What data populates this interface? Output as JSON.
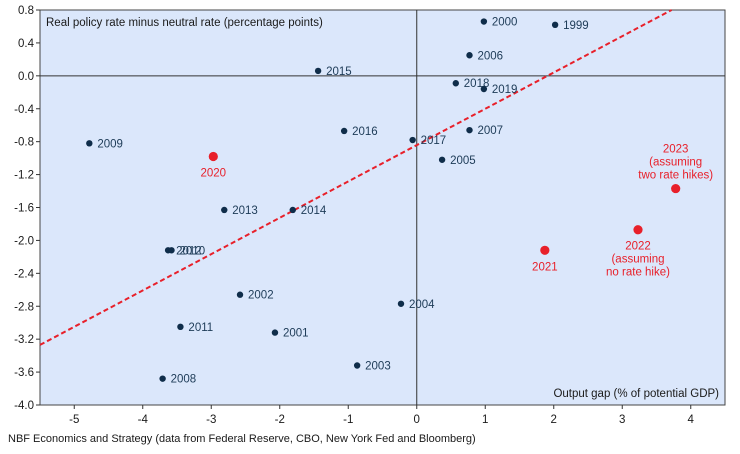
{
  "chart_data": {
    "type": "scatter",
    "annotation_y": "Real policy rate minus neutral rate (percentage points)",
    "annotation_x": "Output gap (% of potential GDP)",
    "xlim": [
      -5.5,
      4.5
    ],
    "ylim": [
      -4.0,
      0.8
    ],
    "x_ticks": [
      "-5",
      "-4",
      "-3",
      "-2",
      "-1",
      "0",
      "1",
      "2",
      "3",
      "4"
    ],
    "y_ticks": [
      "0.8",
      "0.4",
      "0.0",
      "-0.4",
      "-0.8",
      "-1.2",
      "-1.6",
      "-2.0",
      "-2.4",
      "-2.8",
      "-3.2",
      "-3.6",
      "-4.0"
    ],
    "grid": false,
    "colors": {
      "background": "#dbe7fb",
      "historical": "#0f2d4a",
      "highlight": "#e8202a",
      "trend": "#e8202a"
    },
    "points": [
      {
        "label": [
          "2000"
        ],
        "x": 0.98,
        "y": 0.66,
        "color": "historical",
        "label_pos": "right"
      },
      {
        "label": [
          "1999"
        ],
        "x": 2.02,
        "y": 0.62,
        "color": "historical",
        "label_pos": "right"
      },
      {
        "label": [
          "2006"
        ],
        "x": 0.77,
        "y": 0.25,
        "color": "historical",
        "label_pos": "right"
      },
      {
        "label": [
          "2015"
        ],
        "x": -1.44,
        "y": 0.06,
        "color": "historical",
        "label_pos": "right"
      },
      {
        "label": [
          "2018"
        ],
        "x": 0.57,
        "y": -0.09,
        "color": "historical",
        "label_pos": "right"
      },
      {
        "label": [
          "2019"
        ],
        "x": 0.98,
        "y": -0.16,
        "color": "historical",
        "label_pos": "right"
      },
      {
        "label": [
          "2016"
        ],
        "x": -1.06,
        "y": -0.67,
        "color": "historical",
        "label_pos": "right"
      },
      {
        "label": [
          "2007"
        ],
        "x": 0.77,
        "y": -0.66,
        "color": "historical",
        "label_pos": "right"
      },
      {
        "label": [
          "2017"
        ],
        "x": -0.06,
        "y": -0.78,
        "color": "historical",
        "label_pos": "right"
      },
      {
        "label": [
          "2009"
        ],
        "x": -4.78,
        "y": -0.82,
        "color": "historical",
        "label_pos": "right"
      },
      {
        "label": [
          "2005"
        ],
        "x": 0.37,
        "y": -1.02,
        "color": "historical",
        "label_pos": "right"
      },
      {
        "label": [
          "2020"
        ],
        "x": -2.97,
        "y": -0.98,
        "color": "highlight",
        "label_pos": "below"
      },
      {
        "label": [
          "2013"
        ],
        "x": -2.81,
        "y": -1.63,
        "color": "historical",
        "label_pos": "right"
      },
      {
        "label": [
          "2014"
        ],
        "x": -1.81,
        "y": -1.63,
        "color": "historical",
        "label_pos": "right"
      },
      {
        "label": [
          "2012"
        ],
        "x": -3.63,
        "y": -2.12,
        "color": "historical",
        "label_pos": "right"
      },
      {
        "label": [
          "2010"
        ],
        "x": -3.58,
        "y": -2.12,
        "color": "historical",
        "label_pos": "right"
      },
      {
        "label": [
          "2021"
        ],
        "x": 1.87,
        "y": -2.12,
        "color": "highlight",
        "label_pos": "below"
      },
      {
        "label": [
          "2022",
          "(assuming",
          "no rate hike)"
        ],
        "x": 3.23,
        "y": -1.87,
        "color": "highlight",
        "label_pos": "below"
      },
      {
        "label": [
          "2023",
          "(assuming",
          "two rate hikes)"
        ],
        "x": 3.78,
        "y": -1.37,
        "color": "highlight",
        "label_pos": "above"
      },
      {
        "label": [
          "2002"
        ],
        "x": -2.58,
        "y": -2.66,
        "color": "historical",
        "label_pos": "right"
      },
      {
        "label": [
          "2004"
        ],
        "x": -0.23,
        "y": -2.77,
        "color": "historical",
        "label_pos": "right"
      },
      {
        "label": [
          "2011"
        ],
        "x": -3.45,
        "y": -3.05,
        "color": "historical",
        "label_pos": "right"
      },
      {
        "label": [
          "2001"
        ],
        "x": -2.07,
        "y": -3.12,
        "color": "historical",
        "label_pos": "right"
      },
      {
        "label": [
          "2003"
        ],
        "x": -0.87,
        "y": -3.52,
        "color": "historical",
        "label_pos": "right"
      },
      {
        "label": [
          "2008"
        ],
        "x": -3.71,
        "y": -3.68,
        "color": "historical",
        "label_pos": "right"
      }
    ],
    "trendline": {
      "x1": -5.5,
      "y1": -3.27,
      "x2": 3.72,
      "y2": 0.8,
      "style": "dashed"
    }
  },
  "source": "NBF Economics and Strategy (data from Federal Reserve, CBO, New York Fed and Bloomberg)"
}
